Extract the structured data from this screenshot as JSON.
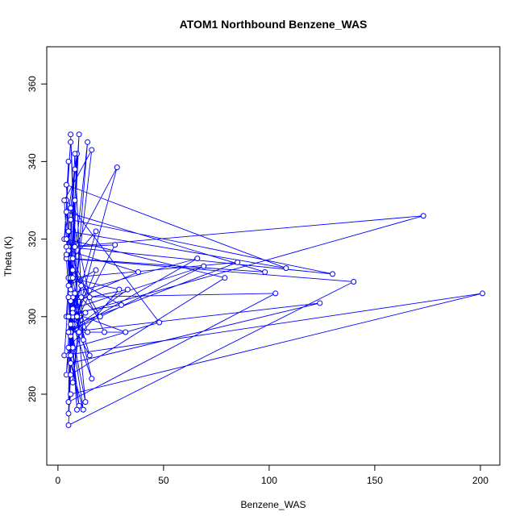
{
  "chart_data": {
    "type": "line",
    "markers": true,
    "title": "ATOM1 Northbound Benzene_WAS",
    "x_label": "Benzene_WAS",
    "y_label": "Theta (K)",
    "xlim": [
      -5.3,
      209.2
    ],
    "ylim": [
      261.7,
      369.6
    ],
    "xticks": [
      0,
      50,
      100,
      150,
      200
    ],
    "yticks": [
      280,
      300,
      320,
      340,
      360
    ],
    "x": [
      5,
      4,
      6,
      3,
      8,
      5,
      4,
      173,
      5,
      6,
      4,
      7,
      10,
      5,
      3,
      201,
      6,
      5,
      8,
      4,
      140,
      5,
      7,
      6,
      130,
      4,
      9,
      5,
      124,
      6,
      5,
      108,
      4,
      7,
      103,
      5,
      6,
      98,
      4,
      8,
      85,
      5,
      6,
      79,
      4,
      7,
      69,
      5,
      66,
      6,
      4,
      48,
      7,
      5,
      38,
      6,
      33,
      5,
      32,
      7,
      30,
      6,
      29,
      5,
      28,
      8,
      27,
      6,
      22,
      4,
      20,
      5,
      18,
      7,
      16,
      6,
      15,
      5,
      14,
      8,
      13,
      6,
      12,
      5,
      11,
      7,
      10,
      6,
      9,
      5,
      8,
      12,
      7,
      14,
      6,
      10,
      5,
      11,
      4,
      9,
      3,
      16,
      6,
      13,
      5,
      18,
      7,
      15,
      6,
      4
    ],
    "series": [
      {
        "color": "#0000ff",
        "values": [
          340,
          330,
          345,
          320,
          338,
          310,
          300,
          326,
          318,
          295,
          285,
          312,
          347,
          305,
          290,
          306,
          280,
          275,
          330,
          315,
          309,
          272,
          300,
          325,
          311,
          318,
          342,
          296,
          303.5,
          288,
          322,
          312.5,
          334,
          305,
          306,
          278,
          315,
          311.5,
          327,
          298,
          314,
          310,
          285,
          310,
          320,
          302,
          313,
          296,
          315,
          306,
          330,
          298.5,
          292,
          317,
          311.5,
          304,
          307,
          296,
          296,
          301,
          303,
          310,
          307,
          292,
          338.5,
          318,
          318.5,
          296,
          296,
          316,
          300,
          308,
          312,
          298,
          284,
          307,
          290,
          300,
          296,
          306,
          278,
          298,
          276,
          290,
          305,
          283,
          296,
          347,
          300,
          305,
          342,
          294,
          310,
          345,
          290,
          277,
          300,
          308,
          315,
          276,
          330,
          343,
          296,
          301,
          296,
          322,
          315,
          305,
          328,
          316
        ]
      }
    ]
  }
}
